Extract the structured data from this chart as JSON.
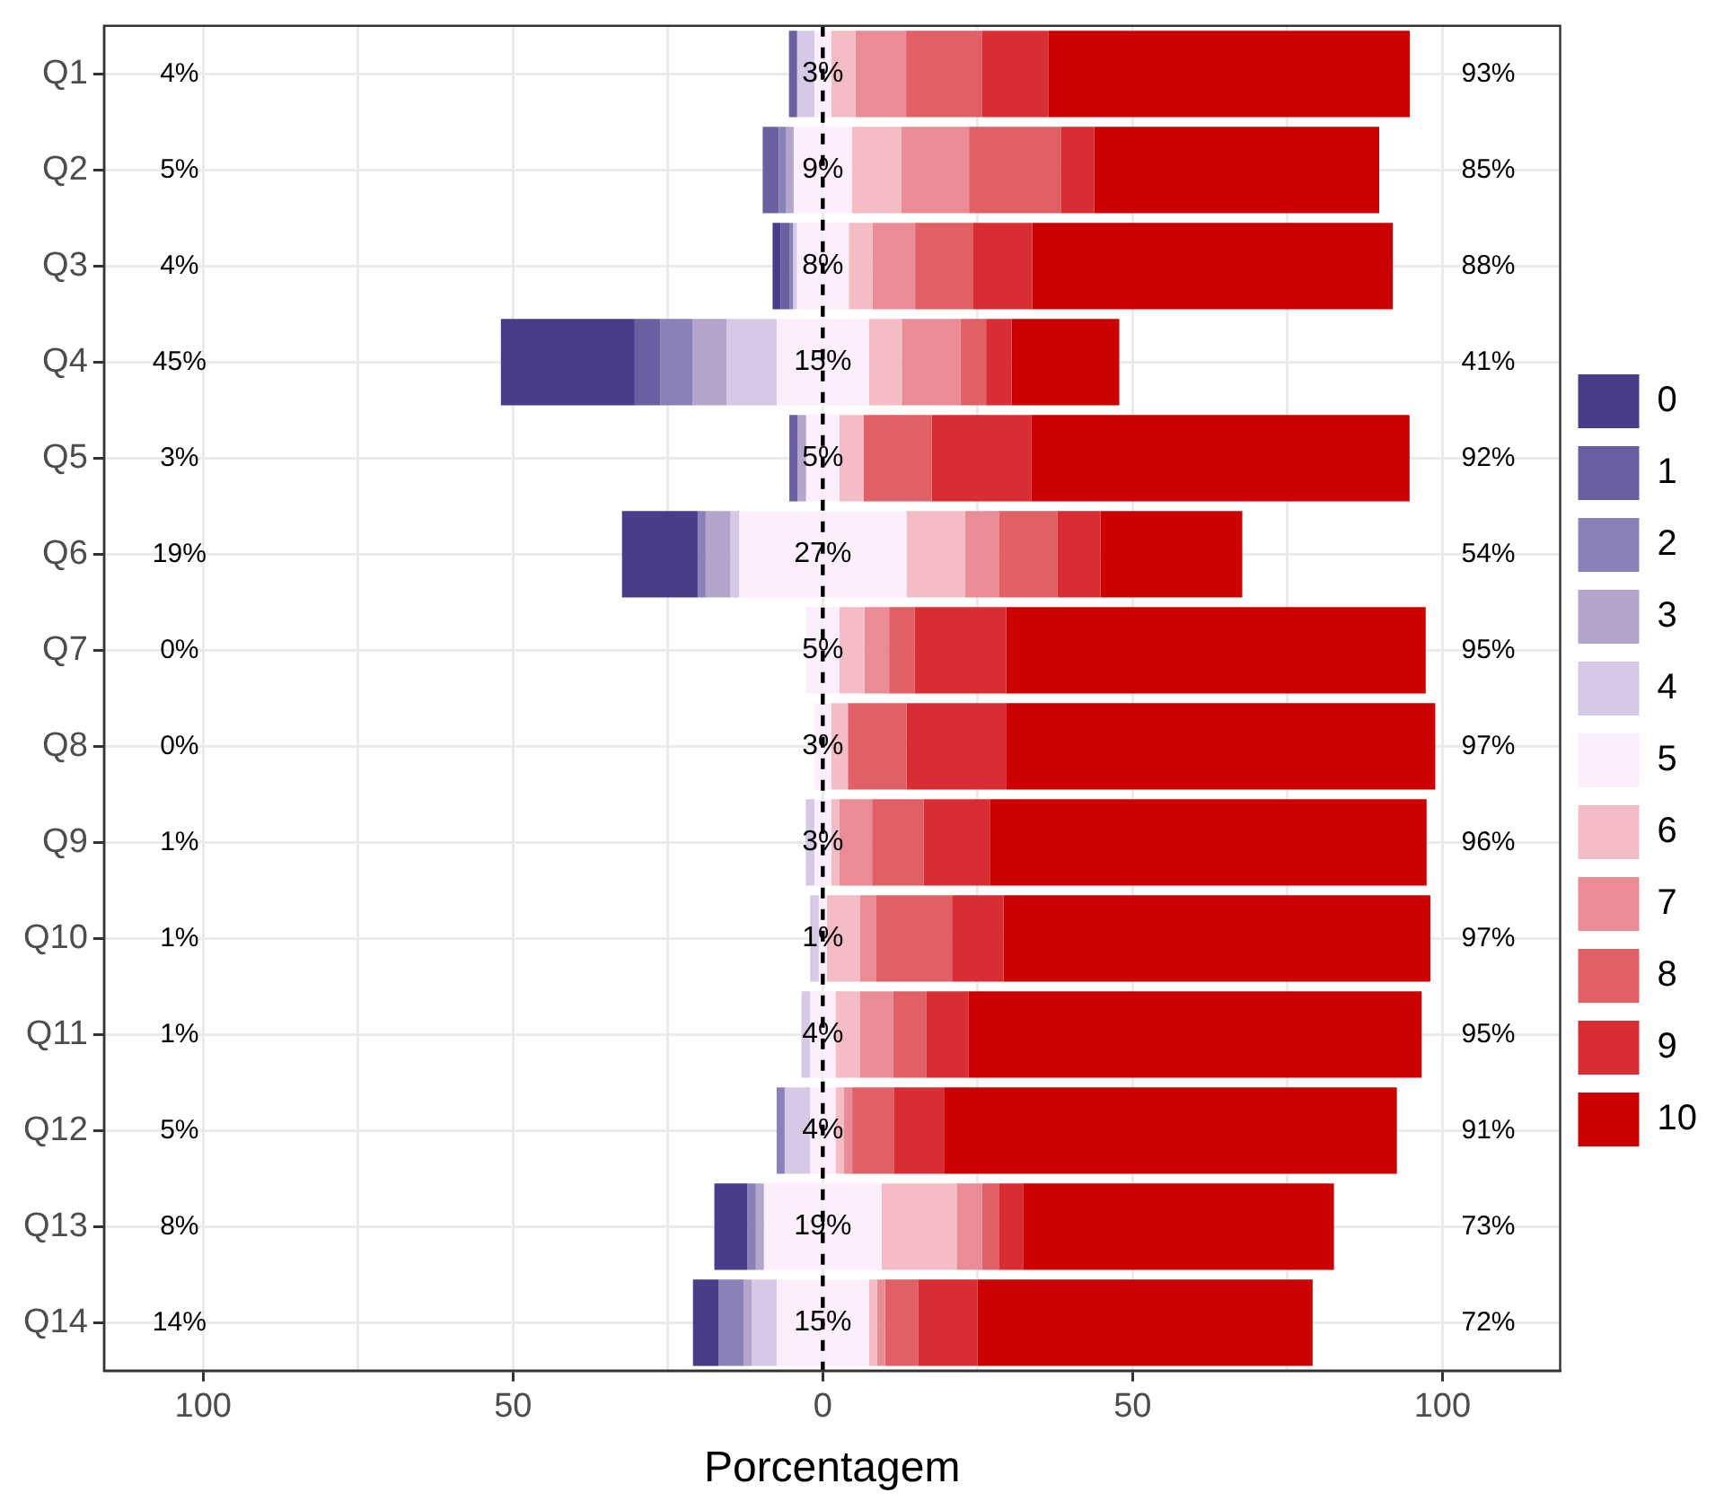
{
  "chart_data": {
    "type": "bar",
    "orientation": "horizontal",
    "xlabel": "Porcentagem",
    "categories": [
      "Q1",
      "Q2",
      "Q3",
      "Q4",
      "Q5",
      "Q6",
      "Q7",
      "Q8",
      "Q9",
      "Q10",
      "Q11",
      "Q12",
      "Q13",
      "Q14"
    ],
    "xlim": [
      -116,
      119
    ],
    "xticks": [
      {
        "value": -100,
        "label": "100"
      },
      {
        "value": -75,
        "label": null
      },
      {
        "value": -50,
        "label": "50"
      },
      {
        "value": -25,
        "label": null
      },
      0,
      {
        "value": 25,
        "label": null
      },
      50,
      {
        "value": 75,
        "label": null
      },
      100
    ],
    "grid": true,
    "legend": "right",
    "ref_lines": [
      {
        "axis": "x",
        "value": 0,
        "line_style": "dashed",
        "color": "#000000"
      }
    ],
    "series": [
      {
        "name": "0",
        "color": "#483d8b",
        "values": [
          null,
          null,
          1.3,
          21.6,
          null,
          12.2,
          null,
          null,
          null,
          null,
          null,
          null,
          5.3,
          4.1
        ],
        "base": [
          null,
          null,
          -8.1,
          -51.95,
          null,
          -32.4,
          null,
          null,
          null,
          null,
          null,
          null,
          -17.5,
          -20.95
        ]
      },
      {
        "name": "1",
        "color": "#6a5fa0",
        "values": [
          1.3,
          2.6,
          1.4,
          4.1,
          1.3,
          null,
          null,
          null,
          null,
          null,
          null,
          null,
          null,
          null
        ],
        "base": [
          -5.45,
          -9.7,
          -6.8,
          -30.35,
          -5.4,
          null,
          null,
          null,
          null,
          null,
          null,
          null,
          null,
          null
        ]
      },
      {
        "name": "2",
        "color": "#8c80b8",
        "values": [
          null,
          1.2,
          0.6,
          5.2,
          null,
          1.3,
          null,
          null,
          null,
          null,
          null,
          1.3,
          1.4,
          4.1
        ],
        "base": [
          null,
          -7.1,
          -5.4,
          -26.25,
          null,
          -20.2,
          null,
          null,
          null,
          null,
          null,
          -7.45,
          -12.2,
          -16.85
        ]
      },
      {
        "name": "3",
        "color": "#b3a5cc",
        "values": [
          null,
          1.2,
          null,
          5.5,
          1.4,
          4,
          null,
          null,
          null,
          null,
          null,
          null,
          1.3,
          1.3
        ],
        "base": [
          null,
          -5.9,
          null,
          -21.05,
          -4.1,
          -18.9,
          null,
          null,
          null,
          null,
          null,
          null,
          -10.8,
          -12.75
        ]
      },
      {
        "name": "4",
        "color": "#d6c9e5",
        "values": [
          2.8,
          null,
          0.6,
          8.1,
          null,
          1.4,
          null,
          null,
          1.4,
          1.4,
          1.4,
          4.1,
          null,
          4
        ],
        "base": [
          -4.15,
          null,
          -4.8,
          -15.55,
          null,
          -14.9,
          null,
          null,
          -2.75,
          -2.05,
          -3.45,
          -6.15,
          null,
          -11.45
        ]
      },
      {
        "name": "5",
        "color": "#fdeefd",
        "values": [
          2.7,
          9.4,
          8.4,
          14.9,
          5.4,
          27,
          5.4,
          2.7,
          2.7,
          1.3,
          4.1,
          4.1,
          19,
          14.9
        ],
        "base": [
          -1.35,
          -4.7,
          -4.2,
          -7.45,
          -2.7,
          -13.5,
          -2.7,
          -1.35,
          -1.35,
          -0.65,
          -2.05,
          -2.05,
          -9.5,
          -7.45
        ],
        "value_labels": [
          "3%",
          "9%",
          "8%",
          "15%",
          "5%",
          "27%",
          "5%",
          "3%",
          "3%",
          "1%",
          "4%",
          "4%",
          "19%",
          "15%"
        ]
      },
      {
        "name": "6",
        "color": "#f4bcc5",
        "values": [
          3.9,
          8,
          3.8,
          5.3,
          3.9,
          9.5,
          4,
          2.7,
          1.3,
          5.3,
          3.9,
          1.3,
          12.1,
          1.3
        ],
        "base": [
          1.35,
          4.7,
          4.2,
          7.45,
          2.7,
          13.5,
          2.7,
          1.35,
          1.35,
          0.65,
          2.05,
          2.05,
          9.5,
          7.45
        ]
      },
      {
        "name": "7",
        "color": "#ea8c95",
        "values": [
          8.2,
          10.9,
          6.9,
          9.5,
          null,
          5.4,
          4,
          null,
          5.3,
          2.7,
          5.4,
          1.4,
          4.1,
          1.3
        ],
        "base": [
          5.25,
          12.7,
          8,
          12.75,
          null,
          23,
          6.7,
          null,
          2.65,
          5.95,
          5.95,
          3.35,
          21.6,
          8.75
        ]
      },
      {
        "name": "8",
        "color": "#e06066",
        "values": [
          12.2,
          14.8,
          9.4,
          4.1,
          11,
          9.5,
          4.1,
          9.5,
          8.3,
          12.2,
          5.4,
          6.7,
          2.7,
          5.4
        ],
        "base": [
          13.45,
          23.6,
          14.9,
          22.25,
          6.6,
          28.4,
          10.7,
          4.05,
          7.95,
          8.65,
          11.35,
          4.75,
          25.7,
          10.05
        ]
      },
      {
        "name": "9",
        "color": "#d72d33",
        "values": [
          10.8,
          5.4,
          9.5,
          4.1,
          16.1,
          6.9,
          14.8,
          16.1,
          10.7,
          8.3,
          6.8,
          8.1,
          4,
          9.5
        ],
        "base": [
          25.65,
          38.4,
          24.3,
          26.35,
          17.6,
          37.9,
          14.8,
          13.55,
          16.25,
          20.85,
          16.75,
          11.45,
          28.4,
          15.45
        ]
      },
      {
        "name": "10",
        "color": "#cc0000",
        "values": [
          58.3,
          46,
          58.2,
          17.4,
          61,
          22.9,
          67.7,
          69.2,
          70.5,
          68.9,
          73.1,
          73.1,
          50.1,
          54.1
        ],
        "base": [
          36.45,
          43.8,
          33.8,
          30.45,
          33.7,
          44.8,
          29.6,
          29.65,
          26.95,
          29.15,
          23.55,
          19.55,
          32.4,
          24.95
        ]
      }
    ],
    "annotations": [
      "4%",
      "5%",
      "4%",
      "45%",
      "3%",
      "19%",
      "0%",
      "0%",
      "1%",
      "1%",
      "1%",
      "5%",
      "8%",
      "14%",
      "93%",
      "85%",
      "88%",
      "41%",
      "92%",
      "54%",
      "95%",
      "97%",
      "96%",
      "97%",
      "95%",
      "91%",
      "73%",
      "72%"
    ]
  }
}
